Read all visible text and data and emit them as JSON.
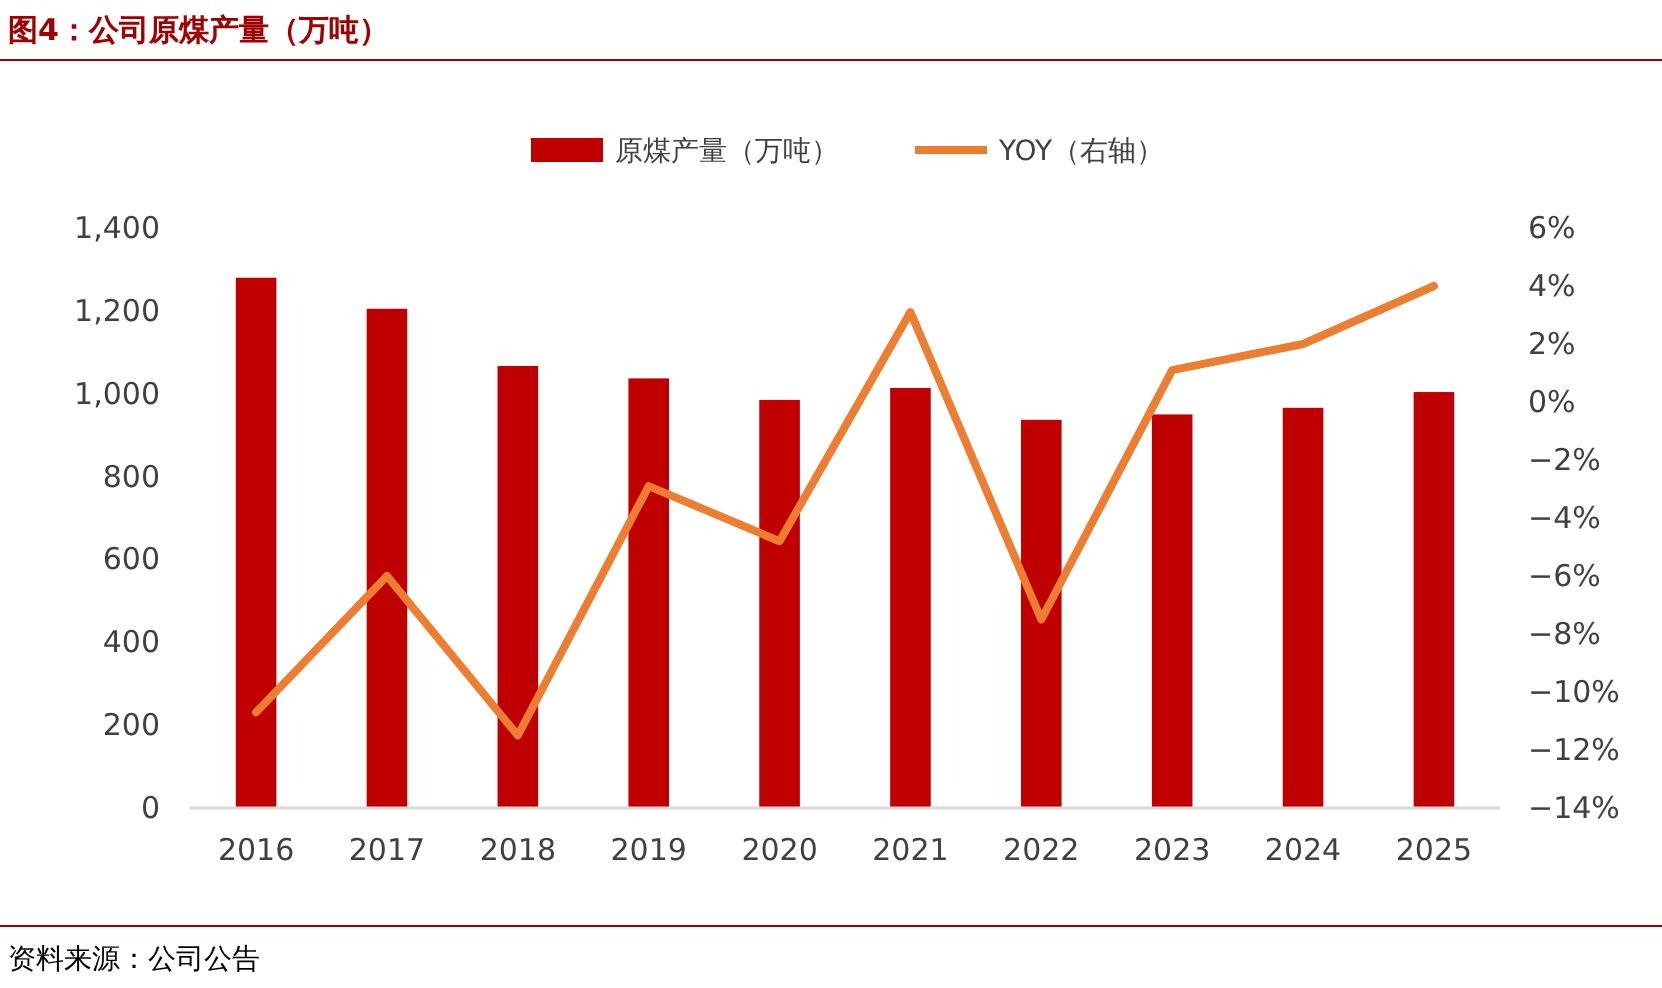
{
  "chart_data": {
    "type": "bar",
    "title": "图4：公司原煤产量（万吨）",
    "annotations": [
      "资料来源：公司公告"
    ],
    "categories": [
      "2016",
      "2017",
      "2018",
      "2019",
      "2020",
      "2021",
      "2022",
      "2023",
      "2024",
      "2025"
    ],
    "series": [
      {
        "name": "原煤产量（万吨）",
        "color": "#c00000",
        "values": [
          1280,
          1205,
          1067,
          1037,
          985,
          1014,
          937,
          950,
          966,
          1004
        ]
      },
      {
        "name": "YOY（右轴）",
        "type": "line",
        "axis": "y2",
        "color": "#ed7d31",
        "values": [
          -10.7,
          -6.0,
          -11.5,
          -2.9,
          -4.8,
          3.1,
          -7.5,
          1.1,
          2.0,
          4.0
        ]
      }
    ],
    "ylim": [
      0,
      1400
    ],
    "yticks": [
      0,
      200,
      400,
      600,
      800,
      {
        "value": 1000,
        "label": "1,000"
      },
      {
        "value": 1200,
        "label": "1,200"
      },
      {
        "value": 1400,
        "label": "1,400"
      }
    ],
    "y2lim": [
      -14,
      6
    ],
    "y2ticks": [
      {
        "value": -14,
        "label": "−14%"
      },
      {
        "value": -12,
        "label": "−12%"
      },
      {
        "value": -10,
        "label": "−10%"
      },
      {
        "value": -8,
        "label": "−8%"
      },
      {
        "value": -6,
        "label": "−6%"
      },
      {
        "value": -4,
        "label": "−4%"
      },
      {
        "value": -2,
        "label": "−2%"
      },
      {
        "value": 0,
        "label": "0%"
      },
      {
        "value": 2,
        "label": "2%"
      },
      {
        "value": 4,
        "label": "4%"
      },
      {
        "value": 6,
        "label": "6%"
      }
    ],
    "grid": false,
    "legend": "top",
    "marker": "none",
    "line_style": "solid"
  }
}
